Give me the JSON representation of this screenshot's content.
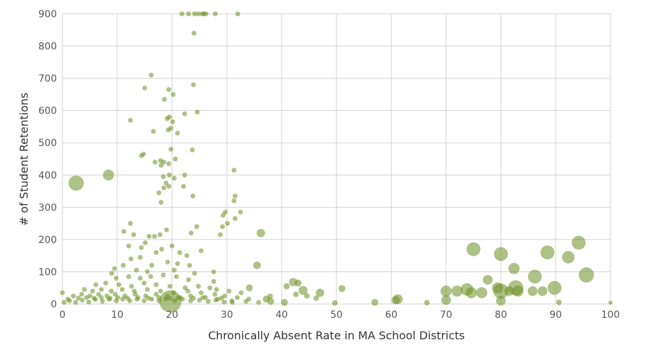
{
  "chart_data": {
    "type": "scatter",
    "xlabel": "Chronically Absent Rate in MA School Districts",
    "ylabel": "# of Student Retentions",
    "xlim": [
      0,
      100
    ],
    "ylim": [
      0,
      900
    ],
    "x_ticks": [
      0,
      10,
      20,
      30,
      40,
      50,
      60,
      70,
      80,
      90,
      100
    ],
    "y_ticks": [
      0,
      100,
      200,
      300,
      400,
      500,
      600,
      700,
      800,
      900
    ],
    "grid": true,
    "marker_color": "#6b8e23",
    "marker_opacity": 0.55,
    "series": [
      {
        "points": [
          [
            2.5,
            375,
            11
          ],
          [
            8.4,
            400,
            8
          ],
          [
            19.7,
            8,
            16
          ],
          [
            36.2,
            220,
            6
          ],
          [
            35.5,
            120,
            5.5
          ],
          [
            34.1,
            50,
            5
          ],
          [
            43.0,
            65,
            5
          ],
          [
            47.0,
            35,
            6
          ],
          [
            51.0,
            48,
            5
          ],
          [
            57.0,
            5,
            5
          ],
          [
            60.8,
            12,
            6
          ],
          [
            61.2,
            15,
            7
          ],
          [
            66.5,
            4,
            4
          ],
          [
            70.0,
            12,
            7
          ],
          [
            70.0,
            40,
            8
          ],
          [
            72.0,
            40,
            8
          ],
          [
            73.8,
            45,
            9
          ],
          [
            74.6,
            35,
            8
          ],
          [
            75.0,
            170,
            10
          ],
          [
            76.5,
            35,
            8
          ],
          [
            77.6,
            75,
            7
          ],
          [
            79.4,
            50,
            8
          ],
          [
            80.0,
            40,
            11
          ],
          [
            80.0,
            10,
            7
          ],
          [
            80.0,
            155,
            10
          ],
          [
            81.5,
            40,
            7
          ],
          [
            82.4,
            110,
            8
          ],
          [
            82.7,
            50,
            11
          ],
          [
            83.1,
            40,
            8
          ],
          [
            85.8,
            40,
            7
          ],
          [
            86.2,
            85,
            10
          ],
          [
            87.6,
            40,
            7
          ],
          [
            88.5,
            160,
            10
          ],
          [
            89.8,
            50,
            10
          ],
          [
            90.6,
            5,
            4
          ],
          [
            92.3,
            145,
            9
          ],
          [
            94.2,
            190,
            10
          ],
          [
            95.6,
            90,
            11
          ],
          [
            100,
            4,
            3
          ],
          [
            43.9,
            42,
            6.5
          ],
          [
            42.1,
            68,
            6
          ],
          [
            40.5,
            5,
            5
          ],
          [
            38.0,
            8,
            5
          ],
          [
            37.2,
            15,
            5
          ],
          [
            49.7,
            3,
            4
          ],
          [
            46.3,
            18,
            4
          ],
          [
            44.6,
            25,
            4
          ],
          [
            40.9,
            55,
            4.5
          ],
          [
            42.6,
            30,
            4
          ],
          [
            37.9,
            24,
            4
          ],
          [
            21.8,
            900,
            3.5
          ],
          [
            23.0,
            900,
            3.5
          ],
          [
            24.1,
            900,
            3.5
          ],
          [
            24.8,
            900,
            3.5
          ],
          [
            25.5,
            900,
            3.5
          ],
          [
            25.8,
            900,
            3.5
          ],
          [
            26.2,
            900,
            3.5
          ],
          [
            27.9,
            900,
            3.5
          ],
          [
            32.0,
            900,
            3.5
          ],
          [
            24.0,
            840,
            3.5
          ],
          [
            16.2,
            710,
            3.5
          ],
          [
            15.0,
            670,
            3.5
          ],
          [
            23.9,
            680,
            3.5
          ],
          [
            19.4,
            665,
            3.5
          ],
          [
            20.2,
            650,
            3.5
          ],
          [
            18.6,
            635,
            3.5
          ],
          [
            24.6,
            595,
            3.5
          ],
          [
            22.3,
            590,
            3.5
          ],
          [
            19.5,
            580,
            3.5
          ],
          [
            19.1,
            575,
            3.5
          ],
          [
            12.4,
            570,
            3.5
          ],
          [
            20.1,
            565,
            3.5
          ],
          [
            16.6,
            535,
            3.5
          ],
          [
            19.8,
            545,
            3.5
          ],
          [
            21.0,
            530,
            3.5
          ],
          [
            19.3,
            540,
            3.5
          ],
          [
            19.8,
            480,
            3.5
          ],
          [
            23.7,
            478,
            3.5
          ],
          [
            14.8,
            465,
            3.5
          ],
          [
            14.4,
            460,
            3.5
          ],
          [
            20.6,
            450,
            3.5
          ],
          [
            17.9,
            445,
            3.5
          ],
          [
            18.5,
            440,
            3.5
          ],
          [
            19.4,
            435,
            3.5
          ],
          [
            18.0,
            430,
            3.5
          ],
          [
            16.9,
            440,
            3.5
          ],
          [
            31.3,
            415,
            3.5
          ],
          [
            22.3,
            400,
            3.5
          ],
          [
            18.4,
            395,
            3.5
          ],
          [
            19.5,
            400,
            3.5
          ],
          [
            20.4,
            390,
            3.5
          ],
          [
            18.9,
            375,
            3.5
          ],
          [
            22.1,
            365,
            3.5
          ],
          [
            18.5,
            360,
            3.5
          ],
          [
            19.4,
            365,
            3.5
          ],
          [
            17.6,
            345,
            3.5
          ],
          [
            23.8,
            335,
            3.5
          ],
          [
            31.5,
            335,
            3.5
          ],
          [
            31.3,
            320,
            3.5
          ],
          [
            18.0,
            315,
            3.5
          ],
          [
            32.5,
            285,
            3.5
          ],
          [
            29.7,
            285,
            3.5
          ],
          [
            29.3,
            275,
            3.5
          ],
          [
            30.1,
            250,
            3.5
          ],
          [
            31.5,
            265,
            3.5
          ],
          [
            12.4,
            250,
            3.5
          ],
          [
            24.5,
            240,
            3.5
          ],
          [
            29.2,
            240,
            3.5
          ],
          [
            11.2,
            225,
            3.5
          ],
          [
            23.5,
            220,
            3.5
          ],
          [
            28.8,
            215,
            3.5
          ],
          [
            15.8,
            210,
            3.5
          ],
          [
            16.8,
            210,
            3.5
          ],
          [
            17.8,
            215,
            3.5
          ],
          [
            25.3,
            165,
            3.5
          ],
          [
            19.0,
            230,
            3.5
          ],
          [
            13.0,
            215,
            3.5
          ],
          [
            12.1,
            180,
            3.5
          ],
          [
            14.4,
            175,
            3.5
          ],
          [
            15.1,
            190,
            3.5
          ],
          [
            17.1,
            160,
            3.5
          ],
          [
            18.1,
            170,
            3.5
          ],
          [
            20.0,
            180,
            3.5
          ],
          [
            21.4,
            160,
            3.5
          ],
          [
            22.7,
            150,
            3.5
          ],
          [
            12.5,
            140,
            3.5
          ],
          [
            14.2,
            145,
            3.5
          ],
          [
            16.3,
            120,
            3.5
          ],
          [
            19.2,
            130,
            3.5
          ],
          [
            21.0,
            125,
            3.5
          ],
          [
            23.2,
            120,
            3.5
          ],
          [
            9.5,
            110,
            3.5
          ],
          [
            11.1,
            120,
            3.5
          ],
          [
            13.5,
            105,
            3.5
          ],
          [
            15.5,
            100,
            3.5
          ],
          [
            20.4,
            105,
            3.5
          ],
          [
            24.1,
            95,
            3.5
          ],
          [
            27.6,
            100,
            3.5
          ],
          [
            9.0,
            95,
            3.5
          ],
          [
            9.8,
            80,
            3.5
          ],
          [
            12.1,
            85,
            3.5
          ],
          [
            14.2,
            80,
            3.5
          ],
          [
            16.1,
            85,
            3.5
          ],
          [
            18.4,
            90,
            3.5
          ],
          [
            20.8,
            85,
            3.5
          ],
          [
            23.0,
            75,
            3.5
          ],
          [
            27.6,
            70,
            3.5
          ],
          [
            6.1,
            60,
            3.5
          ],
          [
            7.9,
            65,
            3.5
          ],
          [
            10.3,
            60,
            3.5
          ],
          [
            12.6,
            55,
            3.5
          ],
          [
            14.9,
            65,
            3.5
          ],
          [
            17.1,
            60,
            3.5
          ],
          [
            19.6,
            55,
            3.5
          ],
          [
            22.4,
            50,
            3.5
          ],
          [
            24.8,
            55,
            3.5
          ],
          [
            26.9,
            50,
            3.5
          ],
          [
            28.1,
            45,
            3.5
          ],
          [
            30.4,
            40,
            3.5
          ],
          [
            32.6,
            35,
            3.5
          ],
          [
            4.0,
            45,
            3.5
          ],
          [
            5.5,
            40,
            3.5
          ],
          [
            7.1,
            45,
            3.5
          ],
          [
            8.9,
            40,
            3.5
          ],
          [
            10.9,
            45,
            3.5
          ],
          [
            13.1,
            40,
            3.5
          ],
          [
            15.5,
            45,
            3.5
          ],
          [
            17.9,
            40,
            3.5
          ],
          [
            20.3,
            35,
            3.5
          ],
          [
            22.9,
            40,
            3.5
          ],
          [
            25.3,
            35,
            3.5
          ],
          [
            27.8,
            30,
            3.5
          ],
          [
            29.6,
            25,
            3.5
          ],
          [
            31.9,
            20,
            3.5
          ],
          [
            34.0,
            15,
            3.5
          ],
          [
            2.0,
            25,
            3.5
          ],
          [
            3.5,
            30,
            3.5
          ],
          [
            5.0,
            25,
            3.5
          ],
          [
            6.6,
            30,
            3.5
          ],
          [
            8.1,
            25,
            3.5
          ],
          [
            9.6,
            30,
            3.5
          ],
          [
            11.4,
            25,
            3.5
          ],
          [
            13.3,
            30,
            3.5
          ],
          [
            15.2,
            25,
            3.5
          ],
          [
            17.1,
            30,
            3.5
          ],
          [
            19.1,
            25,
            3.5
          ],
          [
            21.1,
            20,
            3.5
          ],
          [
            23.4,
            25,
            3.5
          ],
          [
            25.6,
            20,
            3.5
          ],
          [
            28.3,
            15,
            3.5
          ],
          [
            30.9,
            10,
            3.5
          ],
          [
            33.5,
            8,
            3.5
          ],
          [
            35.8,
            5,
            3.5
          ],
          [
            0.3,
            5,
            3.5
          ],
          [
            1.3,
            10,
            3.5
          ],
          [
            2.4,
            5,
            3.5
          ],
          [
            3.6,
            12,
            3.5
          ],
          [
            4.8,
            6,
            3.5
          ],
          [
            6.0,
            14,
            3.5
          ],
          [
            7.3,
            8,
            3.5
          ],
          [
            8.5,
            15,
            3.5
          ],
          [
            9.8,
            10,
            3.5
          ],
          [
            11.0,
            15,
            3.5
          ],
          [
            12.3,
            10,
            3.5
          ],
          [
            13.6,
            15,
            3.5
          ],
          [
            14.9,
            10,
            3.5
          ],
          [
            16.3,
            15,
            3.5
          ],
          [
            17.6,
            10,
            3.5
          ],
          [
            18.9,
            15,
            3.5
          ],
          [
            20.5,
            10,
            3.5
          ],
          [
            21.9,
            15,
            3.5
          ],
          [
            23.4,
            10,
            3.5
          ],
          [
            25.0,
            12,
            3.5
          ],
          [
            26.6,
            8,
            3.5
          ],
          [
            28.0,
            12,
            3.5
          ],
          [
            29.5,
            6,
            3.5
          ],
          [
            31.0,
            5,
            3.5
          ],
          [
            0.0,
            35,
            3.5
          ],
          [
            1.0,
            15,
            3.5
          ],
          [
            2.9,
            18,
            3.5
          ],
          [
            4.4,
            20,
            3.5
          ],
          [
            5.8,
            18,
            3.5
          ],
          [
            7.1,
            20,
            3.5
          ],
          [
            8.7,
            18,
            3.5
          ],
          [
            10.1,
            20,
            3.5
          ],
          [
            11.9,
            18,
            3.5
          ],
          [
            13.8,
            20,
            3.5
          ],
          [
            15.7,
            18,
            3.5
          ],
          [
            17.6,
            20,
            3.5
          ],
          [
            19.6,
            18,
            3.5
          ],
          [
            21.5,
            20,
            3.5
          ],
          [
            23.9,
            18,
            3.5
          ],
          [
            26.1,
            20,
            3.5
          ],
          [
            29.0,
            18,
            3.5
          ]
        ]
      }
    ]
  }
}
